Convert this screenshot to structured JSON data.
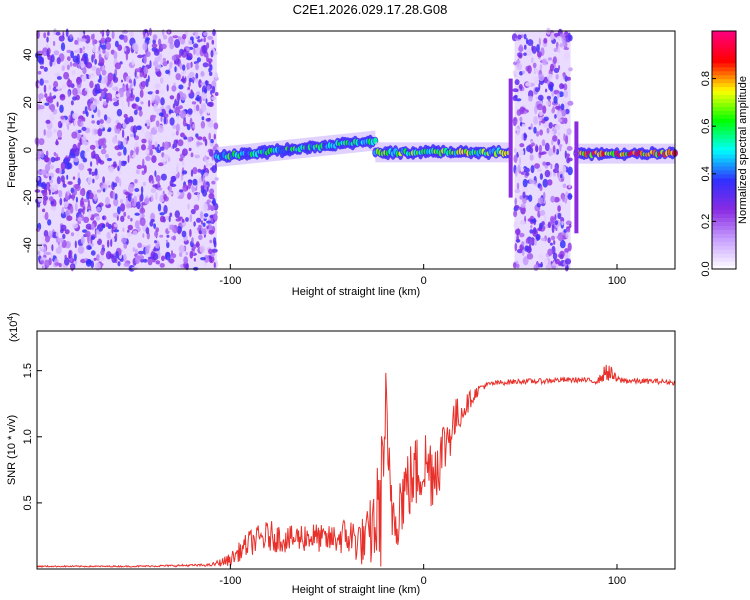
{
  "figure_title": "C2E1.2026.029.17.28.G08",
  "chart_data": [
    {
      "type": "heatmap",
      "name": "spectrogram",
      "xlabel": "Height of straight line (km)",
      "ylabel": "Frequency (Hz)",
      "xlim": [
        -200,
        130
      ],
      "ylim": [
        -50,
        50
      ],
      "xticks": [
        -100,
        0,
        100
      ],
      "yticks": [
        -40,
        -20,
        0,
        20,
        40
      ],
      "colorbar": {
        "label": "Normalized spectral amplitude",
        "range": [
          0,
          1
        ],
        "ticks": [
          0.0,
          0.2,
          0.4,
          0.6,
          0.8
        ],
        "colormap": [
          "#ffffff",
          "#c8a0ff",
          "#8a2be2",
          "#3030ff",
          "#00ffff",
          "#00ff00",
          "#ffff00",
          "#ff0000",
          "#ff0080"
        ]
      },
      "regions": [
        {
          "name": "noise",
          "x_start": -200,
          "x_end": -107,
          "level": 0.2
        },
        {
          "name": "signal-track",
          "x_start": -107,
          "x_end": -25,
          "freq_start": -3,
          "freq_end": 4,
          "level": 0.5
        },
        {
          "name": "signal-track",
          "x_start": -25,
          "x_end": 44,
          "freq_start": -1,
          "freq_end": -1,
          "level": 0.6
        },
        {
          "name": "noise",
          "x_start": 47,
          "x_end": 76,
          "level": 0.2
        },
        {
          "name": "signal-track",
          "x_start": 79,
          "x_end": 130,
          "freq_start": -1.5,
          "freq_end": -1.5,
          "level": 0.8
        }
      ]
    },
    {
      "type": "line",
      "name": "snr",
      "xlabel": "Height of straight line (km)",
      "ylabel": "SNR (10 * v/v)",
      "y_multiplier": "(x10",
      "y_exponent": "4",
      "y_multiplier_close": ")",
      "xlim": [
        -200,
        130
      ],
      "ylim": [
        0,
        1.8
      ],
      "xticks": [
        -100,
        0,
        100
      ],
      "yticks": [
        0.5,
        1.0,
        1.5
      ],
      "ytick_labels": [
        "0.5",
        "1.0",
        "1.5"
      ],
      "color": "#e8302a",
      "series": [
        {
          "name": "SNR",
          "x": [
            -200,
            -150,
            -110,
            -100,
            -90,
            -80,
            -70,
            -60,
            -50,
            -40,
            -30,
            -25,
            -22,
            -20,
            -18,
            -15,
            -10,
            -5,
            0,
            5,
            10,
            15,
            20,
            25,
            30,
            35,
            40,
            50,
            60,
            70,
            80,
            90,
            95,
            100,
            110,
            120,
            130
          ],
          "y": [
            0.02,
            0.02,
            0.03,
            0.07,
            0.2,
            0.25,
            0.22,
            0.25,
            0.22,
            0.25,
            0.2,
            0.35,
            0.5,
            1.2,
            0.6,
            0.4,
            0.6,
            0.7,
            0.8,
            0.75,
            0.9,
            1.1,
            1.2,
            1.3,
            1.38,
            1.4,
            1.41,
            1.42,
            1.42,
            1.43,
            1.43,
            1.42,
            1.5,
            1.43,
            1.42,
            1.42,
            1.41
          ],
          "noise_amplitude": [
            0.005,
            0.005,
            0.01,
            0.05,
            0.1,
            0.12,
            0.1,
            0.12,
            0.1,
            0.15,
            0.2,
            0.35,
            0.5,
            0.5,
            0.4,
            0.3,
            0.3,
            0.3,
            0.3,
            0.3,
            0.25,
            0.2,
            0.1,
            0.06,
            0.03,
            0.02,
            0.02,
            0.02,
            0.02,
            0.02,
            0.02,
            0.02,
            0.08,
            0.03,
            0.02,
            0.02,
            0.02
          ]
        }
      ]
    }
  ]
}
